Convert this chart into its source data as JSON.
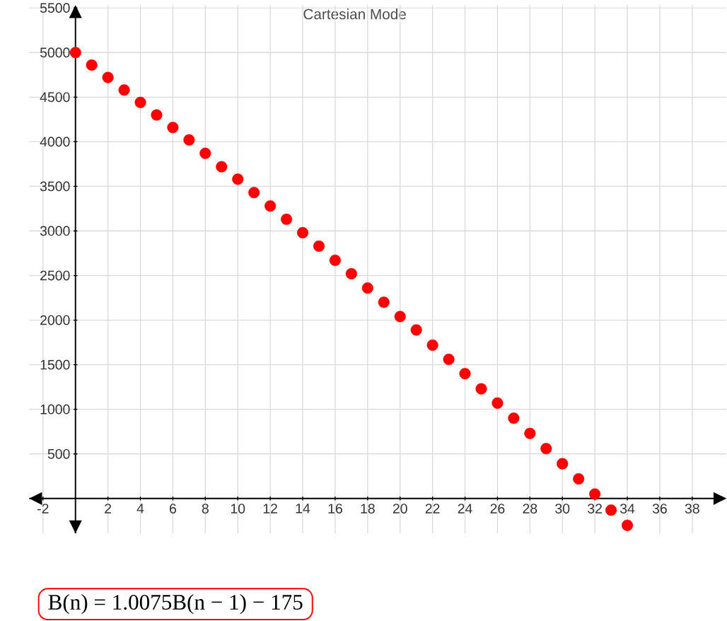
{
  "chart_data": {
    "type": "scatter",
    "title": "Cartesian Mode",
    "x": [
      0,
      1,
      2,
      3,
      4,
      5,
      6,
      7,
      8,
      9,
      10,
      11,
      12,
      13,
      14,
      15,
      16,
      17,
      18,
      19,
      20,
      21,
      22,
      23,
      24,
      25,
      26,
      27,
      28,
      29,
      30,
      31,
      32,
      33,
      34
    ],
    "values": [
      5000,
      4860,
      4720,
      4580,
      4440,
      4300,
      4160,
      4020,
      3870,
      3720,
      3580,
      3430,
      3280,
      3130,
      2980,
      2830,
      2670,
      2520,
      2360,
      2200,
      2040,
      1890,
      1720,
      1560,
      1400,
      1230,
      1070,
      900,
      730,
      560,
      390,
      220,
      50,
      -130,
      -300
    ],
    "color": "#ff0000",
    "grid": true,
    "xlim": [
      -2.85,
      40.1
    ],
    "ylim": [
      -390,
      5530
    ],
    "xticks": [
      -2,
      2,
      4,
      6,
      8,
      10,
      12,
      14,
      16,
      18,
      20,
      22,
      24,
      26,
      28,
      30,
      32,
      34,
      36,
      38
    ],
    "yticks": [
      500,
      1000,
      1500,
      2000,
      2500,
      3000,
      3500,
      4000,
      4500,
      5000,
      5500
    ],
    "annotations": [
      "B(n) = 1.0075B(n − 1) − 175"
    ]
  }
}
